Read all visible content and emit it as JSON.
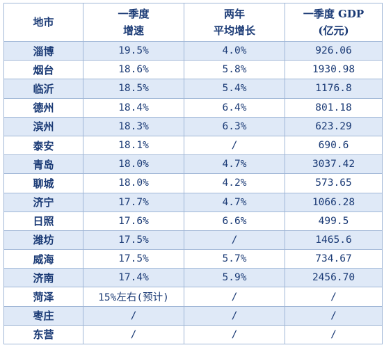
{
  "header": {
    "city": "地市",
    "q1_growth_line1": "一季度",
    "q1_growth_line2": "增速",
    "two_year_line1": "两年",
    "two_year_line2": "平均增长",
    "gdp_line1": "一季度 GDP",
    "gdp_line2": "(亿元)"
  },
  "colors": {
    "text": "#1a3a75",
    "border": "#9fb6d6",
    "row_shade": "#dfe9f7"
  },
  "rows": [
    {
      "city": "淄博",
      "growth": "19.5%",
      "two_year": "4.0%",
      "gdp": "926.06",
      "shaded": true
    },
    {
      "city": "烟台",
      "growth": "18.6%",
      "two_year": "5.8%",
      "gdp": "1930.98",
      "shaded": false
    },
    {
      "city": "临沂",
      "growth": "18.5%",
      "two_year": "5.4%",
      "gdp": "1176.8",
      "shaded": true
    },
    {
      "city": "德州",
      "growth": "18.4%",
      "two_year": "6.4%",
      "gdp": "801.18",
      "shaded": false
    },
    {
      "city": "滨州",
      "growth": "18.3%",
      "two_year": "6.3%",
      "gdp": "623.29",
      "shaded": true
    },
    {
      "city": "泰安",
      "growth": "18.1%",
      "two_year": "/",
      "gdp": "690.6",
      "shaded": false
    },
    {
      "city": "青岛",
      "growth": "18.0%",
      "two_year": "4.7%",
      "gdp": "3037.42",
      "shaded": true
    },
    {
      "city": "聊城",
      "growth": "18.0%",
      "two_year": "4.2%",
      "gdp": "573.65",
      "shaded": false
    },
    {
      "city": "济宁",
      "growth": "17.7%",
      "two_year": "4.7%",
      "gdp": "1066.28",
      "shaded": true
    },
    {
      "city": "日照",
      "growth": "17.6%",
      "two_year": "6.6%",
      "gdp": "499.5",
      "shaded": false
    },
    {
      "city": "潍坊",
      "growth": "17.5%",
      "two_year": "/",
      "gdp": "1465.6",
      "shaded": true
    },
    {
      "city": "威海",
      "growth": "17.5%",
      "two_year": "5.7%",
      "gdp": "734.67",
      "shaded": false
    },
    {
      "city": "济南",
      "growth": "17.4%",
      "two_year": "5.9%",
      "gdp": "2456.70",
      "shaded": true
    },
    {
      "city": "菏泽",
      "growth": "15%左右(预计)",
      "two_year": "/",
      "gdp": "/",
      "shaded": false
    },
    {
      "city": "枣庄",
      "growth": "/",
      "two_year": "/",
      "gdp": "/",
      "shaded": true
    },
    {
      "city": "东营",
      "growth": "/",
      "two_year": "/",
      "gdp": "/",
      "shaded": false
    }
  ]
}
